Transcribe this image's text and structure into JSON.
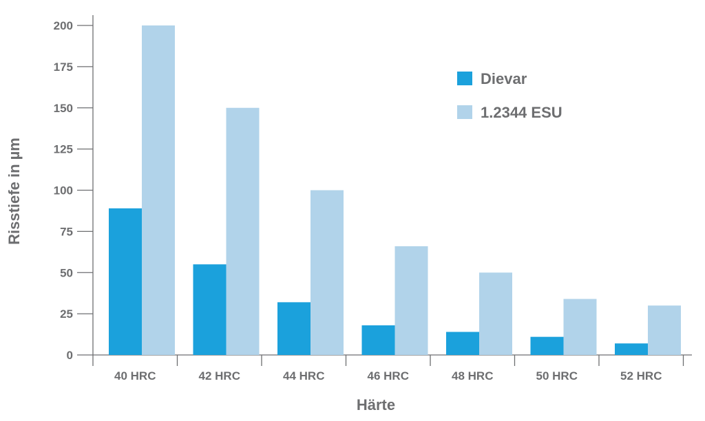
{
  "chart_data": {
    "type": "bar",
    "title": "",
    "xlabel": "Härte",
    "ylabel": "Risstiefe in µm",
    "categories": [
      "40 HRC",
      "42 HRC",
      "44 HRC",
      "46 HRC",
      "48 HRC",
      "50 HRC",
      "52 HRC"
    ],
    "series": [
      {
        "name": "Dievar",
        "color": "#1ba1dc",
        "values": [
          89,
          55,
          32,
          18,
          14,
          11,
          7
        ]
      },
      {
        "name": "1.2344 ESU",
        "color": "#b1d3ea",
        "values": [
          200,
          150,
          100,
          66,
          50,
          34,
          30
        ]
      }
    ],
    "ylim": [
      0,
      200
    ],
    "yticks": [
      0,
      25,
      50,
      75,
      100,
      125,
      150,
      175,
      200
    ],
    "grid": false,
    "legend_position": "top-right"
  }
}
